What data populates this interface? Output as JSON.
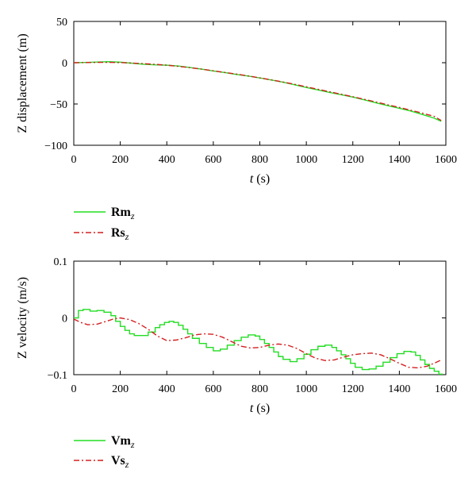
{
  "chart_data": [
    {
      "type": "line",
      "ylabel": "Z displacement (m)",
      "xlabel_var": "t",
      "xlabel_unit": " (s)",
      "xlim": [
        0,
        1600
      ],
      "ylim": [
        -100,
        50
      ],
      "x_ticks": [
        "0",
        "200",
        "400",
        "600",
        "800",
        "1000",
        "1200",
        "1400",
        "1600"
      ],
      "y_ticks": [
        "50",
        "0",
        "−50",
        "−100"
      ],
      "legend_placement": "below",
      "series": [
        {
          "name": "Rm",
          "name_sub": "z",
          "color": "#22dd22",
          "style": "solid",
          "x": [
            0,
            50,
            100,
            150,
            200,
            250,
            300,
            350,
            400,
            450,
            500,
            550,
            600,
            650,
            700,
            750,
            800,
            850,
            900,
            950,
            1000,
            1050,
            1100,
            1150,
            1200,
            1250,
            1300,
            1350,
            1400,
            1450,
            1500,
            1550,
            1580
          ],
          "y": [
            0,
            0.3,
            0.8,
            1.2,
            0.6,
            -0.6,
            -1.8,
            -2.6,
            -3.0,
            -4.0,
            -5.8,
            -7.8,
            -10.0,
            -12.0,
            -14.2,
            -16.2,
            -18.4,
            -21.0,
            -23.6,
            -26.8,
            -30.0,
            -33.0,
            -36.0,
            -38.8,
            -41.6,
            -45.0,
            -48.6,
            -52.0,
            -55.2,
            -58.6,
            -62.8,
            -67.2,
            -71.0
          ]
        },
        {
          "name": "Rs",
          "name_sub": "z",
          "color": "#d42020",
          "style": "dashdot",
          "x": [
            0,
            50,
            100,
            150,
            200,
            250,
            300,
            350,
            400,
            450,
            500,
            550,
            600,
            650,
            700,
            750,
            800,
            850,
            900,
            950,
            1000,
            1050,
            1100,
            1150,
            1200,
            1250,
            1300,
            1350,
            1400,
            1450,
            1500,
            1550,
            1580
          ],
          "y": [
            0,
            0.2,
            0.4,
            0.4,
            0.2,
            -0.4,
            -1.2,
            -2.0,
            -3.0,
            -4.4,
            -6.0,
            -7.8,
            -9.8,
            -11.8,
            -13.8,
            -16.0,
            -18.4,
            -20.8,
            -23.4,
            -26.2,
            -29.2,
            -32.2,
            -35.2,
            -38.2,
            -41.2,
            -44.4,
            -47.6,
            -51.0,
            -54.2,
            -57.6,
            -61.2,
            -65.0,
            -70.0
          ]
        }
      ]
    },
    {
      "type": "line",
      "ylabel": "Z velocity (m/s)",
      "xlabel_var": "t",
      "xlabel_unit": " (s)",
      "xlim": [
        0,
        1600
      ],
      "ylim": [
        -0.1,
        0.1
      ],
      "x_ticks": [
        "0",
        "200",
        "400",
        "600",
        "800",
        "1000",
        "1200",
        "1400",
        "1600"
      ],
      "y_ticks": [
        "0.1",
        "0",
        "−0.1"
      ],
      "legend_placement": "below",
      "series": [
        {
          "name": "Vm",
          "name_sub": "z",
          "color": "#22dd22",
          "style": "solid-staircase",
          "x": [
            0,
            20,
            40,
            70,
            100,
            130,
            160,
            180,
            200,
            220,
            240,
            260,
            290,
            320,
            350,
            370,
            390,
            410,
            430,
            450,
            470,
            490,
            510,
            540,
            570,
            600,
            630,
            660,
            690,
            720,
            750,
            780,
            800,
            820,
            840,
            860,
            880,
            900,
            930,
            960,
            990,
            1020,
            1050,
            1080,
            1110,
            1130,
            1150,
            1170,
            1190,
            1210,
            1240,
            1270,
            1300,
            1330,
            1360,
            1390,
            1420,
            1450,
            1470,
            1490,
            1510,
            1530,
            1550,
            1570,
            1585
          ],
          "y": [
            0,
            0.013,
            0.015,
            0.012,
            0.013,
            0.01,
            0.004,
            -0.006,
            -0.015,
            -0.022,
            -0.028,
            -0.031,
            -0.031,
            -0.025,
            -0.017,
            -0.012,
            -0.008,
            -0.006,
            -0.008,
            -0.013,
            -0.02,
            -0.028,
            -0.036,
            -0.045,
            -0.052,
            -0.058,
            -0.055,
            -0.048,
            -0.04,
            -0.034,
            -0.03,
            -0.032,
            -0.038,
            -0.045,
            -0.052,
            -0.06,
            -0.068,
            -0.073,
            -0.077,
            -0.072,
            -0.064,
            -0.056,
            -0.05,
            -0.048,
            -0.052,
            -0.058,
            -0.065,
            -0.072,
            -0.08,
            -0.087,
            -0.091,
            -0.09,
            -0.085,
            -0.078,
            -0.07,
            -0.063,
            -0.059,
            -0.06,
            -0.066,
            -0.074,
            -0.082,
            -0.089,
            -0.094,
            -0.099,
            -0.101
          ]
        },
        {
          "name": "Vs",
          "name_sub": "z",
          "color": "#d42020",
          "style": "dashdot",
          "x": [
            0,
            30,
            60,
            100,
            140,
            170,
            200,
            240,
            280,
            320,
            360,
            400,
            440,
            480,
            520,
            560,
            600,
            640,
            680,
            720,
            760,
            800,
            840,
            880,
            920,
            960,
            1000,
            1040,
            1080,
            1120,
            1160,
            1200,
            1240,
            1280,
            1320,
            1360,
            1400,
            1440,
            1480,
            1520,
            1560,
            1580
          ],
          "y": [
            -0.002,
            -0.008,
            -0.012,
            -0.011,
            -0.006,
            -0.002,
            0.0,
            -0.003,
            -0.01,
            -0.02,
            -0.032,
            -0.04,
            -0.039,
            -0.035,
            -0.03,
            -0.028,
            -0.029,
            -0.034,
            -0.042,
            -0.05,
            -0.053,
            -0.052,
            -0.048,
            -0.046,
            -0.048,
            -0.054,
            -0.063,
            -0.071,
            -0.075,
            -0.074,
            -0.069,
            -0.065,
            -0.063,
            -0.062,
            -0.065,
            -0.072,
            -0.08,
            -0.087,
            -0.088,
            -0.085,
            -0.078,
            -0.074
          ]
        }
      ]
    }
  ]
}
